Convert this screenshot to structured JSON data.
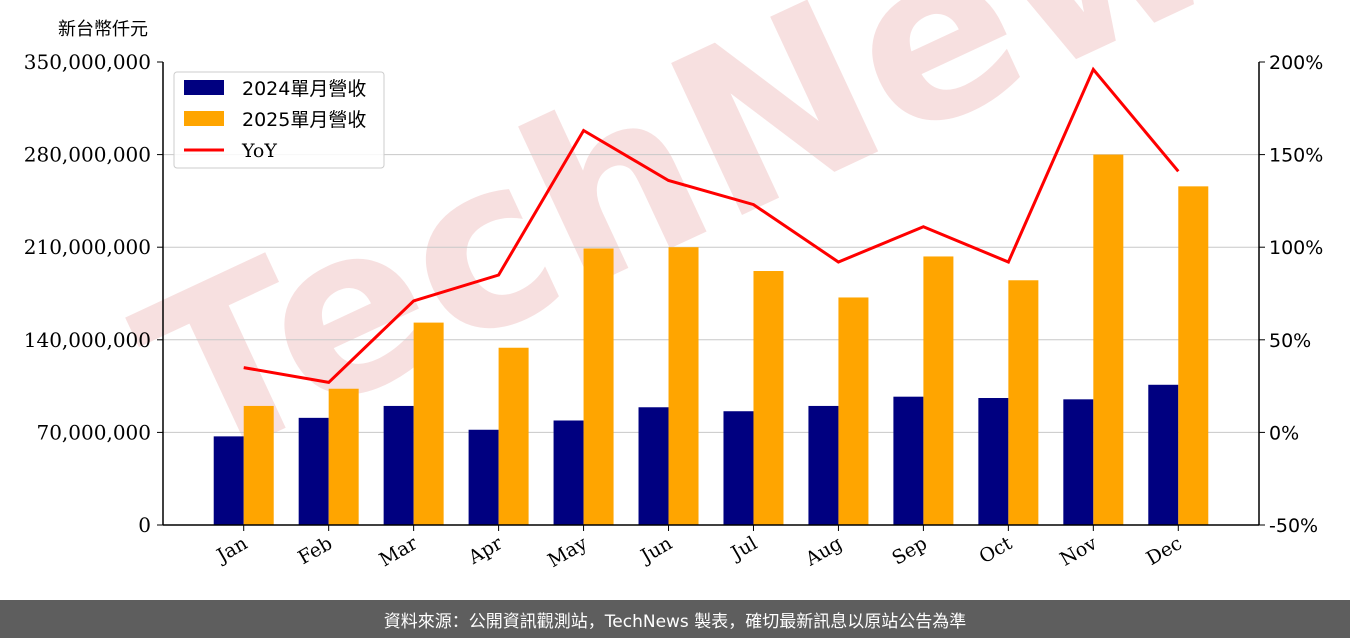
{
  "unit_label": "新台幣仟元",
  "footer_text": "資料來源：公開資訊觀測站，TechNews 製表，確切最新訊息以原站公告為準",
  "watermark_text": "TechNews",
  "colors": {
    "series_2024": "#000080",
    "series_2025": "#ffa500",
    "yoy_line": "#ff0000",
    "grid": "#c8c8c8",
    "footer_bg": "#5e5e5e",
    "watermark": "#f4d6d6"
  },
  "chart_data": {
    "type": "bar",
    "categories": [
      "Jan",
      "Feb",
      "Mar",
      "Apr",
      "May",
      "Jun",
      "Jul",
      "Aug",
      "Sep",
      "Oct",
      "Nov",
      "Dec"
    ],
    "series": [
      {
        "name": "2024單月營收",
        "type": "bar",
        "axis": "left",
        "values": [
          67000000,
          81000000,
          90000000,
          72000000,
          79000000,
          89000000,
          86000000,
          90000000,
          97000000,
          96000000,
          95000000,
          106000000
        ]
      },
      {
        "name": "2025單月營收",
        "type": "bar",
        "axis": "left",
        "values": [
          90000000,
          103000000,
          153000000,
          134000000,
          209000000,
          210000000,
          192000000,
          172000000,
          203000000,
          185000000,
          280000000,
          256000000
        ]
      },
      {
        "name": "YoY",
        "type": "line",
        "axis": "right",
        "values": [
          35,
          27,
          71,
          85,
          163,
          136,
          123,
          92,
          111,
          92,
          196,
          141
        ]
      }
    ],
    "ylim_left": [
      0,
      350000000
    ],
    "yticks_left": [
      "0",
      "70,000,000",
      "140,000,000",
      "210,000,000",
      "280,000,000",
      "350,000,000"
    ],
    "ylim_right": [
      -50,
      200
    ],
    "yticks_right": [
      "-50%",
      "0%",
      "50%",
      "100%",
      "150%",
      "200%"
    ],
    "grid": "horizontal",
    "legend_position": "top-left"
  }
}
